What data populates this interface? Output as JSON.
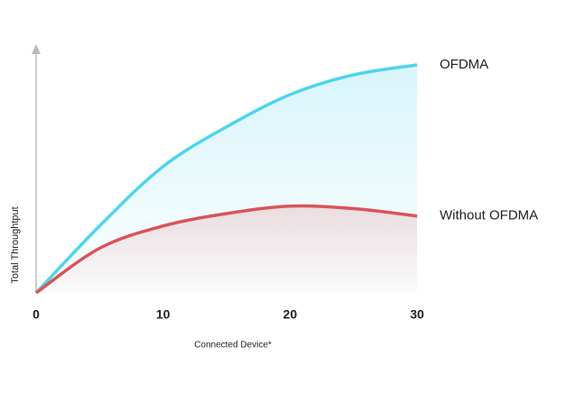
{
  "chart_data": {
    "type": "line",
    "x_label": "Connected Device*",
    "y_label": "Total Throughtput",
    "x": [
      0,
      5,
      10,
      15,
      20,
      25,
      30
    ],
    "xlim": [
      0,
      30
    ],
    "xticks": [
      0,
      10,
      20,
      30
    ],
    "ylim": [
      0,
      100
    ],
    "series": [
      {
        "name": "OFDMA",
        "color": "#4dd5ec",
        "values": [
          0,
          27,
          51,
          67,
          80,
          88,
          92
        ]
      },
      {
        "name": "Without OFDMA",
        "color": "#d9545a",
        "values": [
          0,
          18,
          27,
          32,
          35,
          34,
          31
        ]
      }
    ]
  }
}
